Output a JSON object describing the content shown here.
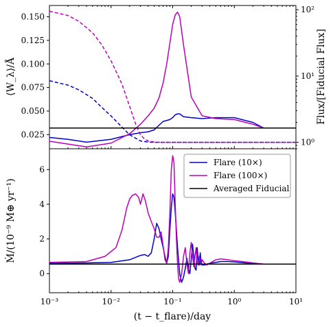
{
  "chart_data": [
    {
      "type": "line",
      "panel": "top",
      "xscale": "log",
      "xlim": [
        0.001,
        10
      ],
      "ylabel": "⟨W_λ⟩/Å",
      "ylim": [
        0.01,
        0.162
      ],
      "yticks": [
        0.025,
        0.05,
        0.075,
        0.1,
        0.125,
        0.15
      ],
      "ytick_labels": [
        "0.025",
        "0.050",
        "0.075",
        "0.100",
        "0.125",
        "0.150"
      ],
      "y2label": "Flux/[Fiducial Flux]",
      "y2scale": "log",
      "y2lim": [
        0.8,
        116
      ],
      "y2ticks": [
        1,
        10,
        100
      ],
      "y2tick_labels": [
        "10⁰",
        "10¹",
        "10²"
      ],
      "series": [
        {
          "key": "ew10",
          "axis": "left",
          "color": "#0000cc",
          "x": [
            0.001,
            0.002,
            0.004,
            0.01,
            0.02,
            0.03,
            0.04,
            0.05,
            0.06,
            0.07,
            0.08,
            0.09,
            0.1,
            0.11,
            0.12,
            0.13,
            0.15,
            0.2,
            0.3,
            0.5,
            1,
            2,
            3
          ],
          "y": [
            0.022,
            0.02,
            0.017,
            0.02,
            0.025,
            0.027,
            0.028,
            0.03,
            0.035,
            0.039,
            0.04,
            0.041,
            0.043,
            0.046,
            0.047,
            0.047,
            0.044,
            0.043,
            0.042,
            0.043,
            0.043,
            0.038,
            0.032
          ]
        },
        {
          "key": "ew100",
          "axis": "left",
          "color": "#bb00bb",
          "x": [
            0.001,
            0.002,
            0.004,
            0.01,
            0.02,
            0.03,
            0.04,
            0.05,
            0.06,
            0.07,
            0.08,
            0.09,
            0.1,
            0.11,
            0.12,
            0.13,
            0.15,
            0.2,
            0.3,
            0.5,
            1,
            2,
            3
          ],
          "y": [
            0.018,
            0.015,
            0.012,
            0.016,
            0.026,
            0.036,
            0.045,
            0.053,
            0.064,
            0.08,
            0.1,
            0.122,
            0.142,
            0.152,
            0.155,
            0.15,
            0.12,
            0.065,
            0.045,
            0.042,
            0.041,
            0.036,
            0.032
          ]
        },
        {
          "key": "flux10",
          "axis": "right",
          "color": "#0000cc",
          "dash": true,
          "x": [
            0.001,
            0.002,
            0.003,
            0.005,
            0.007,
            0.01,
            0.015,
            0.02,
            0.03,
            0.04,
            0.05,
            0.07,
            0.1,
            1,
            10
          ],
          "y": [
            8.5,
            7.3,
            6.2,
            4.6,
            3.4,
            2.5,
            1.7,
            1.3,
            1.05,
            1.01,
            1.0,
            1.0,
            1.0,
            1.0,
            1.0
          ]
        },
        {
          "key": "flux100",
          "axis": "right",
          "color": "#bb00bb",
          "dash": true,
          "x": [
            0.001,
            0.002,
            0.003,
            0.005,
            0.007,
            0.01,
            0.015,
            0.02,
            0.025,
            0.03,
            0.035,
            0.04,
            0.05,
            0.07,
            0.1,
            1,
            10
          ],
          "y": [
            95,
            82,
            67,
            45,
            30,
            17,
            7.6,
            3.5,
            1.9,
            1.3,
            1.12,
            1.05,
            1.01,
            1.0,
            1.0,
            1.0,
            1.0
          ]
        }
      ],
      "hlines": [
        {
          "y": 0.032,
          "color": "#000000"
        }
      ]
    },
    {
      "type": "line",
      "panel": "bottom",
      "xscale": "log",
      "xlim": [
        0.001,
        10
      ],
      "xlabel": "(t − t_flare)/day",
      "xticks": [
        0.001,
        0.01,
        0.1,
        1,
        10
      ],
      "xtick_labels": [
        "10⁻³",
        "10⁻²",
        "10⁻¹",
        "10⁰",
        "10¹"
      ],
      "ylabel": "Ṁ/(10⁻⁹ M⊕ yr⁻¹)",
      "ylim": [
        -1.1,
        7.2
      ],
      "yticks": [
        0,
        2,
        4,
        6
      ],
      "ytick_labels": [
        "0",
        "2",
        "4",
        "6"
      ],
      "legend_position": "top-right",
      "series": [
        {
          "key": "mdot10",
          "name": "Flare (10×)",
          "color": "#0000cc",
          "x": [
            0.001,
            0.004,
            0.01,
            0.02,
            0.03,
            0.035,
            0.04,
            0.045,
            0.05,
            0.055,
            0.06,
            0.065,
            0.07,
            0.075,
            0.08,
            0.085,
            0.09,
            0.095,
            0.1,
            0.105,
            0.11,
            0.115,
            0.12,
            0.13,
            0.14,
            0.15,
            0.16,
            0.17,
            0.18,
            0.19,
            0.2,
            0.21,
            0.22,
            0.23,
            0.24,
            0.25,
            0.26,
            0.27,
            0.28,
            0.29,
            0.3,
            0.33,
            0.36,
            0.4,
            0.5,
            0.6,
            0.8,
            1,
            1.5,
            2,
            3
          ],
          "y": [
            0.6,
            0.62,
            0.65,
            0.8,
            1.05,
            1.1,
            1.0,
            1.2,
            2.0,
            2.9,
            2.6,
            2.0,
            1.5,
            1.0,
            0.6,
            1.0,
            2.5,
            3.8,
            4.6,
            4.4,
            3.5,
            2.5,
            1.5,
            0.0,
            -0.5,
            -0.2,
            0.3,
            0.9,
            0.3,
            0.0,
            0.8,
            1.7,
            1.0,
            0.3,
            0.2,
            1.5,
            0.7,
            0.5,
            1.2,
            0.6,
            0.5,
            0.5,
            0.55,
            0.6,
            0.65,
            0.7,
            0.7,
            0.68,
            0.62,
            0.6,
            0.55
          ]
        },
        {
          "key": "mdot100",
          "name": "Flare (100×)",
          "color": "#bb00bb",
          "x": [
            0.001,
            0.004,
            0.008,
            0.012,
            0.015,
            0.018,
            0.02,
            0.022,
            0.025,
            0.028,
            0.03,
            0.033,
            0.036,
            0.04,
            0.045,
            0.05,
            0.055,
            0.06,
            0.065,
            0.07,
            0.075,
            0.08,
            0.085,
            0.09,
            0.095,
            0.1,
            0.105,
            0.11,
            0.115,
            0.12,
            0.125,
            0.13,
            0.14,
            0.15,
            0.16,
            0.17,
            0.18,
            0.19,
            0.2,
            0.21,
            0.22,
            0.23,
            0.24,
            0.25,
            0.26,
            0.27,
            0.28,
            0.29,
            0.3,
            0.33,
            0.36,
            0.4,
            0.5,
            0.6,
            0.8,
            1,
            1.5,
            2,
            3
          ],
          "y": [
            0.65,
            0.7,
            1.0,
            1.5,
            2.5,
            3.8,
            4.3,
            4.5,
            4.6,
            4.4,
            4.0,
            4.6,
            4.2,
            3.5,
            3.0,
            2.6,
            2.1,
            2.1,
            2.4,
            1.6,
            0.8,
            0.6,
            1.5,
            3.5,
            6.0,
            6.8,
            6.4,
            4.0,
            2.0,
            0.5,
            -0.3,
            -0.5,
            0.0,
            1.0,
            1.5,
            0.6,
            0.0,
            1.2,
            1.8,
            1.0,
            0.4,
            1.0,
            1.5,
            0.6,
            0.5,
            1.0,
            0.6,
            0.5,
            0.8,
            0.6,
            0.5,
            0.6,
            0.8,
            0.85,
            0.8,
            0.75,
            0.68,
            0.62,
            0.55
          ]
        }
      ],
      "hlines": [
        {
          "key": "fid",
          "name": "Averaged Fiducial",
          "y": 0.55,
          "color": "#000000"
        }
      ]
    }
  ]
}
